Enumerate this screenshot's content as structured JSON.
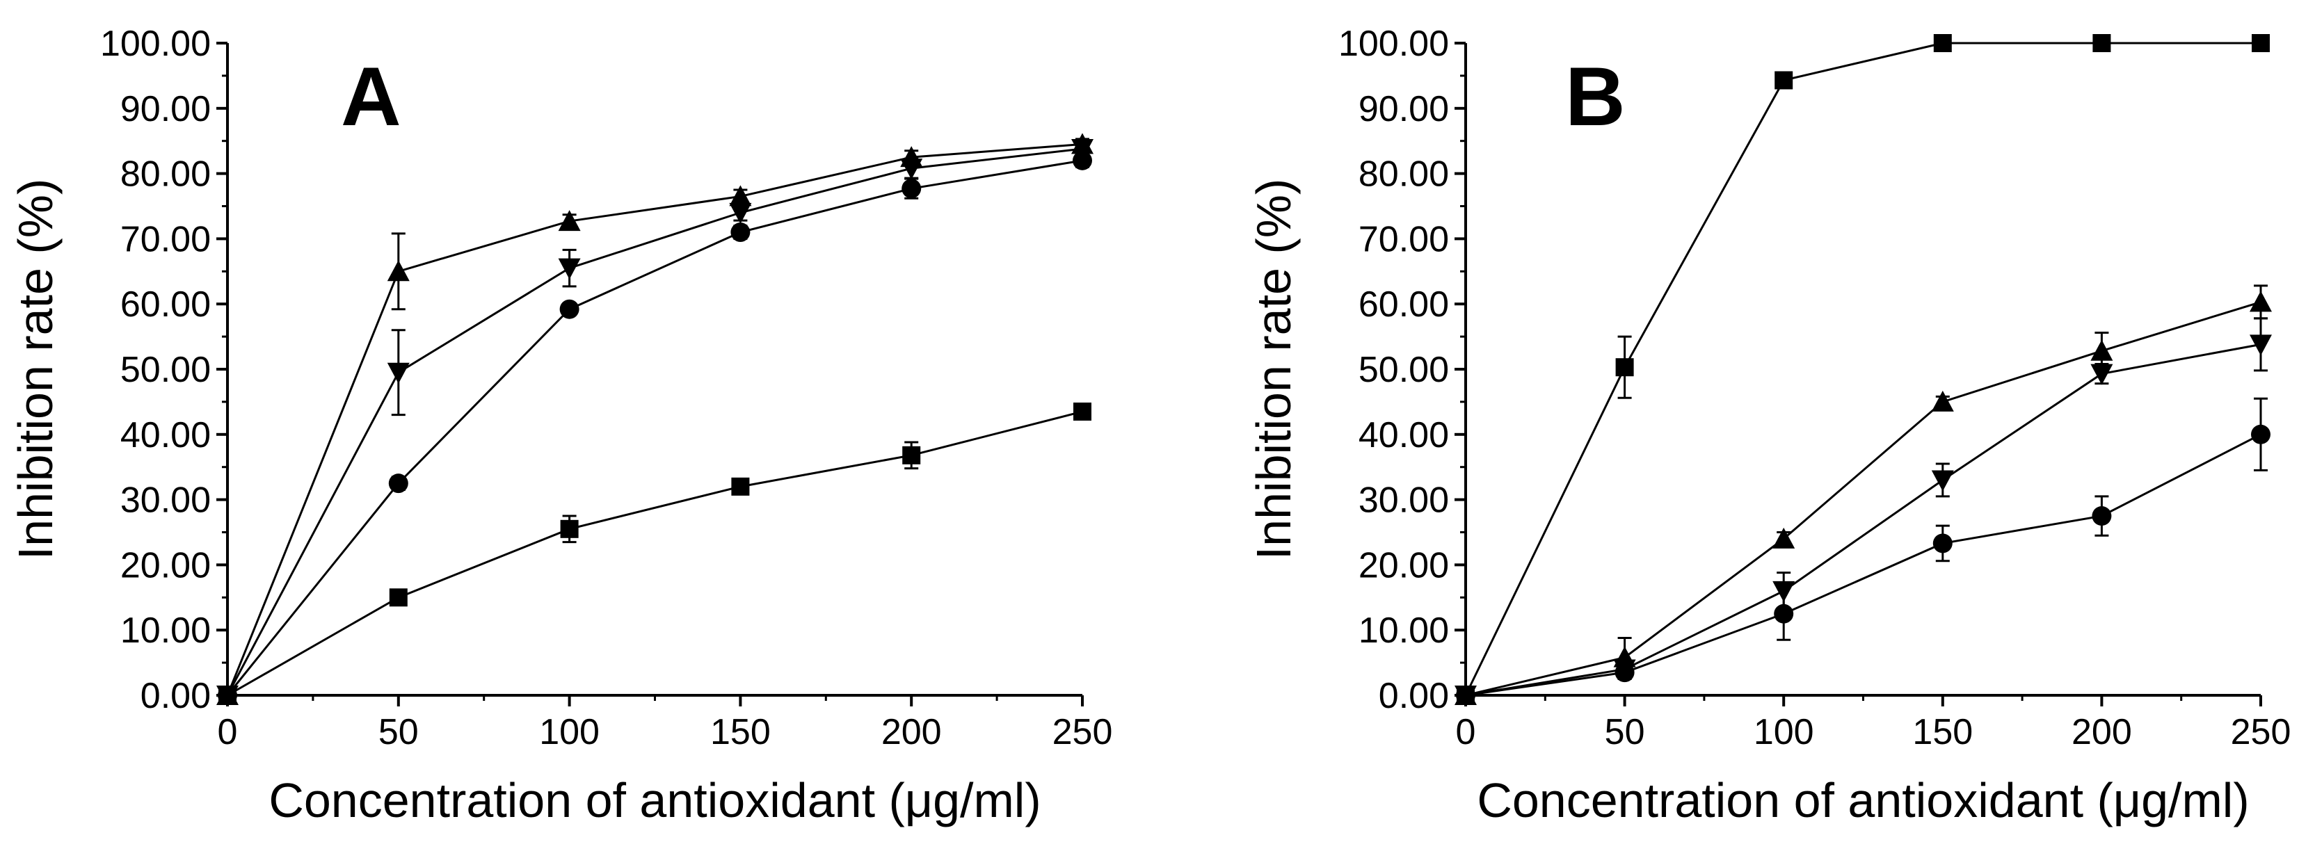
{
  "chart_data": [
    {
      "type": "line",
      "panel": "A",
      "title": "",
      "xlabel": "Concentration of antioxidant (μg/ml)",
      "ylabel": "Inhibition rate (%)",
      "xlim": [
        0,
        250
      ],
      "ylim": [
        0,
        100
      ],
      "xticks": [
        0,
        50,
        100,
        150,
        200,
        250
      ],
      "xtick_labels": [
        "0",
        "50",
        "100",
        "150",
        "200",
        "250"
      ],
      "yticks": [
        0,
        10,
        20,
        30,
        40,
        50,
        60,
        70,
        80,
        90,
        100
      ],
      "ytick_labels": [
        "0.00",
        "10.00",
        "20.00",
        "30.00",
        "40.00",
        "50.00",
        "60.00",
        "70.00",
        "80.00",
        "90.00",
        "100.00"
      ],
      "grid": false,
      "legend": "none",
      "x": [
        0,
        50,
        100,
        150,
        200,
        250
      ],
      "series": [
        {
          "name": "square",
          "marker": "square",
          "values": [
            0,
            15.0,
            25.5,
            32.0,
            36.8,
            43.5
          ],
          "error": [
            0,
            1.2,
            2.0,
            0.8,
            2.0,
            0.8
          ]
        },
        {
          "name": "circle",
          "marker": "circle",
          "values": [
            0,
            32.5,
            59.2,
            71.0,
            77.7,
            82.0
          ],
          "error": [
            0,
            1.0,
            0.8,
            1.0,
            1.5,
            1.0
          ]
        },
        {
          "name": "triangle-up",
          "marker": "triangle-up",
          "values": [
            0,
            65.0,
            72.7,
            76.5,
            82.5,
            84.5
          ],
          "error": [
            0,
            5.8,
            1.0,
            1.0,
            1.0,
            0.8
          ]
        },
        {
          "name": "triangle-down",
          "marker": "triangle-down",
          "values": [
            0,
            49.5,
            65.5,
            74.0,
            80.8,
            83.8
          ],
          "error": [
            0,
            6.5,
            2.8,
            1.2,
            1.5,
            1.0
          ]
        }
      ]
    },
    {
      "type": "line",
      "panel": "B",
      "title": "",
      "xlabel": "Concentration of antioxidant (μg/ml)",
      "ylabel": "Inhibition rate (%)",
      "xlim": [
        0,
        250
      ],
      "ylim": [
        0,
        100
      ],
      "xticks": [
        0,
        50,
        100,
        150,
        200,
        250
      ],
      "xtick_labels": [
        "0",
        "50",
        "100",
        "150",
        "200",
        "250"
      ],
      "yticks": [
        0,
        10,
        20,
        30,
        40,
        50,
        60,
        70,
        80,
        90,
        100
      ],
      "ytick_labels": [
        "0.00",
        "10.00",
        "20.00",
        "30.00",
        "40.00",
        "50.00",
        "60.00",
        "70.00",
        "80.00",
        "90.00",
        "100.00"
      ],
      "grid": false,
      "legend": "none",
      "x": [
        0,
        50,
        100,
        150,
        200,
        250
      ],
      "series": [
        {
          "name": "square",
          "marker": "square",
          "values": [
            0,
            50.3,
            94.3,
            100,
            100,
            100
          ],
          "error": [
            0,
            4.7,
            0.5,
            0,
            0,
            0
          ]
        },
        {
          "name": "circle",
          "marker": "circle",
          "values": [
            0,
            3.5,
            12.5,
            23.3,
            27.5,
            40.0
          ],
          "error": [
            0,
            1.0,
            4.0,
            2.7,
            3.0,
            5.5
          ]
        },
        {
          "name": "triangle-up",
          "marker": "triangle-up",
          "values": [
            0,
            5.8,
            24.0,
            45.0,
            52.8,
            60.3
          ],
          "error": [
            0,
            3.0,
            1.0,
            0.8,
            2.8,
            2.5
          ]
        },
        {
          "name": "triangle-down",
          "marker": "triangle-down",
          "values": [
            0,
            4.0,
            16.0,
            33.0,
            49.3,
            53.8
          ],
          "error": [
            0,
            1.0,
            2.8,
            2.5,
            1.5,
            4.0
          ]
        }
      ]
    }
  ]
}
